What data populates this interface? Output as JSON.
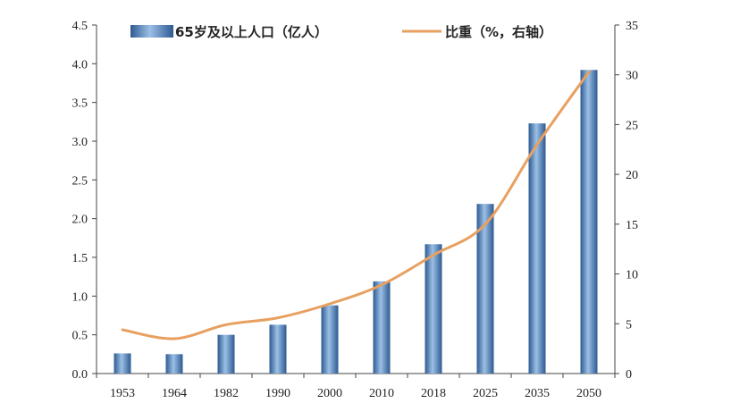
{
  "chart_data": {
    "type": "bar",
    "categories": [
      "1953",
      "1964",
      "1982",
      "1990",
      "2000",
      "2010",
      "2018",
      "2025",
      "2035",
      "2050"
    ],
    "series": [
      {
        "name": "65岁及以上人口（亿人）",
        "type": "bar",
        "axis": "left",
        "values": [
          0.26,
          0.25,
          0.5,
          0.63,
          0.88,
          1.19,
          1.67,
          2.19,
          3.23,
          3.92
        ]
      },
      {
        "name": "比重（%，右轴）",
        "type": "line",
        "axis": "right",
        "values": [
          4.4,
          3.5,
          4.9,
          5.6,
          7.0,
          8.9,
          11.9,
          15.0,
          23.0,
          30.3
        ]
      }
    ],
    "title": "",
    "xlabel": "",
    "ylabel": "",
    "y_left": {
      "min": 0,
      "max": 4.5,
      "ticks": [
        "0.0",
        "0.5",
        "1.0",
        "1.5",
        "2.0",
        "2.5",
        "3.0",
        "3.5",
        "4.0",
        "4.5"
      ]
    },
    "y_right": {
      "min": 0,
      "max": 35,
      "ticks": [
        "0",
        "5",
        "10",
        "15",
        "20",
        "25",
        "30",
        "35"
      ]
    },
    "legend": "top",
    "grid": false,
    "colors": {
      "bar": "#3f73ad",
      "bar_light": "#9cc0e6",
      "bar_dark": "#2d5a91",
      "line": "#e8a060"
    }
  }
}
